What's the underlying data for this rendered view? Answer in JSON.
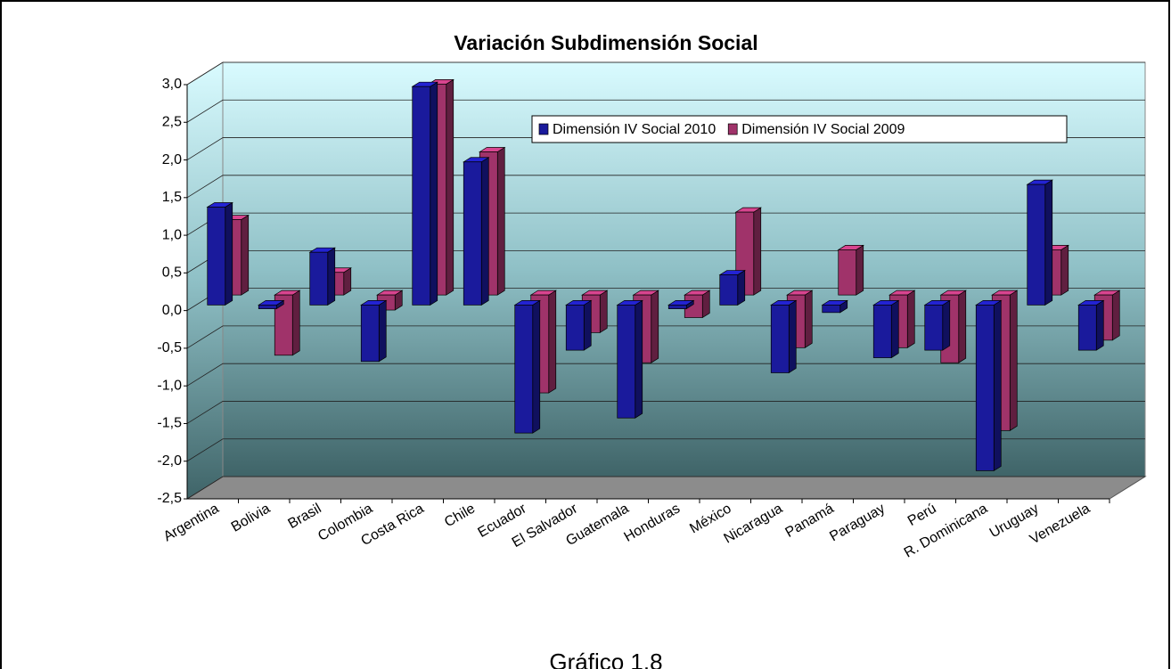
{
  "chart_data": {
    "type": "bar3d",
    "title": "Variación Subdimensión Social",
    "caption": "Gráfico 1.8",
    "categories": [
      "Argentina",
      "Bolivia",
      "Brasil",
      "Colombia",
      "Costa Rica",
      "Chile",
      "Ecuador",
      "El Salvador",
      "Guatemala",
      "Honduras",
      "México",
      "Nicaragua",
      "Panamá",
      "Paraguay",
      "Perú",
      "R. Dominicana",
      "Uruguay",
      "Venezuela"
    ],
    "series": [
      {
        "name": "Dimensión IV Social 2010",
        "color": "#1a1a9c",
        "values": [
          1.3,
          -0.05,
          0.7,
          -0.75,
          2.9,
          1.9,
          -1.7,
          -0.6,
          -1.5,
          -0.05,
          0.4,
          -0.9,
          -0.1,
          -0.7,
          -0.6,
          -2.2,
          1.6,
          -0.6
        ]
      },
      {
        "name": "Dimensión IV Social 2009",
        "color": "#a0336a",
        "values": [
          1.0,
          -0.8,
          0.3,
          -0.2,
          2.8,
          1.9,
          -1.3,
          -0.5,
          -0.9,
          -0.3,
          1.1,
          -0.7,
          0.6,
          -0.7,
          -0.9,
          -1.8,
          0.6,
          -0.6
        ]
      }
    ],
    "ylim": [
      -2.5,
      3.0
    ],
    "yticks": [
      {
        "value": -2.5,
        "label": "-2,5"
      },
      {
        "value": -2.0,
        "label": "-2,0"
      },
      {
        "value": -1.5,
        "label": "-1,5"
      },
      {
        "value": -1.0,
        "label": "-1,0"
      },
      {
        "value": -0.5,
        "label": "-0,5"
      },
      {
        "value": 0.0,
        "label": "0,0"
      },
      {
        "value": 0.5,
        "label": "0,5"
      },
      {
        "value": 1.0,
        "label": "1,0"
      },
      {
        "value": 1.5,
        "label": "1,5"
      },
      {
        "value": 2.0,
        "label": "2,0"
      },
      {
        "value": 2.5,
        "label": "2,5"
      },
      {
        "value": 3.0,
        "label": "3,0"
      }
    ],
    "grid": true,
    "legend": "top-right"
  }
}
